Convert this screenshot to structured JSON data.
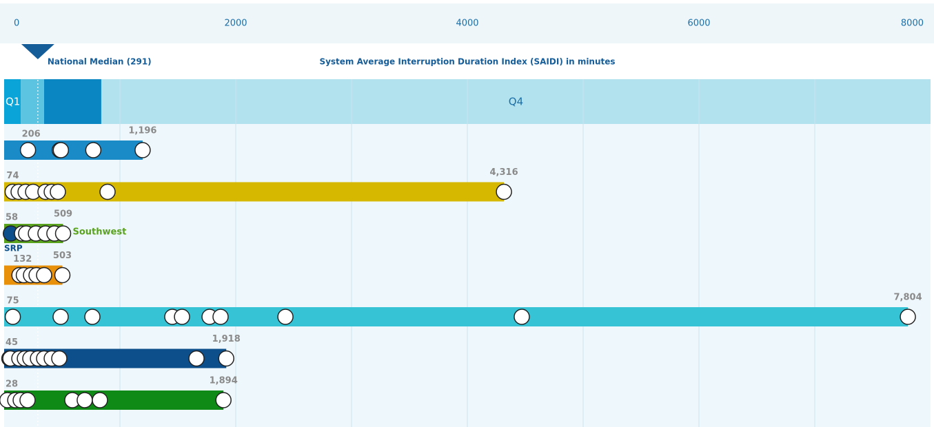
{
  "chart_data": {
    "type": "dot-range",
    "title": "System Average Interruption Duration Index (SAIDI) in minutes",
    "median": 291,
    "median_label": "National Median (291)",
    "xlim": [
      0,
      8000
    ],
    "xticks": [
      0,
      2000,
      4000,
      6000,
      8000
    ],
    "quartiles": {
      "edges": [
        0,
        143,
        345,
        839,
        8000
      ],
      "colors": [
        "#0ba4d8",
        "#5cc4e1",
        "#0a86c3",
        "#b3e2ef"
      ],
      "labels": [
        "Q1",
        null,
        null,
        "Q4"
      ]
    },
    "rows": [
      {
        "color": "#1a8bc7",
        "min": 206,
        "max": {
          "value": 1196,
          "label": "1,196"
        },
        "values": [
          206,
          480,
          490,
          770,
          1196
        ]
      },
      {
        "color": "#d6b800",
        "min": 74,
        "max": {
          "value": 4316,
          "label": "4,316"
        },
        "values": [
          74,
          125,
          185,
          250,
          357,
          411,
          464,
          893,
          4316
        ]
      },
      {
        "color": "#5aa31e",
        "min": 58,
        "max": {
          "value": 509,
          "label": "509"
        },
        "values": [
          58,
          155,
          190,
          274,
          357,
          434,
          509
        ],
        "right_label": "Southwest",
        "below_label": "SRP",
        "highlight_color": "#0d4f8b"
      },
      {
        "color": "#e8900a",
        "min": 132,
        "max": {
          "value": 503,
          "label": "503"
        },
        "values": [
          132,
          170,
          232,
          280,
          345,
          503
        ]
      },
      {
        "color": "#36c3d6",
        "min": 75,
        "max": {
          "value": 7804,
          "label": "7,804"
        },
        "values": [
          75,
          488,
          762,
          1452,
          1536,
          1774,
          1869,
          2429,
          4470,
          7804
        ]
      },
      {
        "color": "#0d4f8b",
        "min": 45,
        "max": {
          "value": 1918,
          "label": "1,918"
        },
        "values": [
          45,
          54,
          131,
          179,
          226,
          292,
          345,
          411,
          476,
          1661,
          1918
        ]
      },
      {
        "color": "#0f8a16",
        "min": 28,
        "max": {
          "value": 1894,
          "label": "1,894"
        },
        "values": [
          28,
          96,
          143,
          202,
          589,
          696,
          827,
          1894
        ]
      }
    ]
  }
}
